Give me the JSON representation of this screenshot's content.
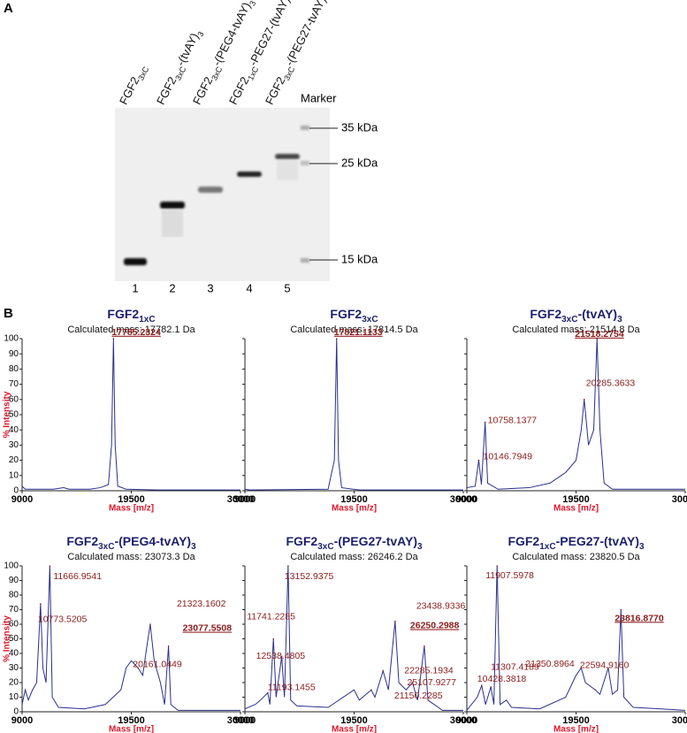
{
  "panel_labels": [
    "A",
    "B"
  ],
  "gel": {
    "lanes": [
      [
        {
          "t": "FGF2"
        },
        {
          "t": "3xC",
          "sub": true
        }
      ],
      [
        {
          "t": "FGF2"
        },
        {
          "t": "3xC",
          "sub": true
        },
        {
          "t": "-(tvAY)"
        },
        {
          "t": "3",
          "sub": true
        }
      ],
      [
        {
          "t": "FGF2"
        },
        {
          "t": "3xC",
          "sub": true
        },
        {
          "t": "-(PEG4-tvAY)"
        },
        {
          "t": "3",
          "sub": true
        }
      ],
      [
        {
          "t": "FGF2"
        },
        {
          "t": "1xC",
          "sub": true
        },
        {
          "t": "-PEG27-(tvAY)"
        },
        {
          "t": "3",
          "sub": true
        }
      ],
      [
        {
          "t": "FGF2"
        },
        {
          "t": "3xC",
          "sub": true
        },
        {
          "t": "-(PEG27-tvAY)"
        },
        {
          "t": "3",
          "sub": true
        }
      ]
    ],
    "lane_numbers": [
      "1",
      "2",
      "3",
      "4",
      "5"
    ],
    "marker_title": "Marker",
    "marker_sizes": [
      "35 kDa",
      "25 kDa",
      "15 kDa"
    ]
  },
  "chart_data": [
    {
      "type": "line",
      "title": [
        {
          "t": "FGF2"
        },
        {
          "t": "1xC",
          "sub": true
        }
      ],
      "subtitle": "Calculated mass: 17782.1 Da",
      "x_label": "Mass [m/z]",
      "y_label": "% Intensity",
      "color": "#2a2f8f",
      "xlim": [
        9000,
        30000
      ],
      "xticks": [
        9000,
        19500,
        30000
      ],
      "ylim": [
        0,
        100
      ],
      "yticks": [
        0,
        10,
        20,
        30,
        40,
        50,
        60,
        70,
        80,
        90,
        100
      ],
      "x": [
        9000,
        9300,
        10000,
        12000,
        13000,
        13500,
        15500,
        16500,
        17300,
        17600,
        17785.2324,
        17950,
        18200,
        19000,
        22000,
        30000
      ],
      "values": [
        3,
        1,
        1,
        1,
        2,
        1,
        1,
        2,
        4,
        30,
        100,
        30,
        3,
        1,
        0.5,
        0.5
      ],
      "peaks": [
        {
          "value": 17785.2324,
          "label": "17785.2324",
          "underline": true
        }
      ]
    },
    {
      "type": "line",
      "title": [
        {
          "t": "FGF2"
        },
        {
          "t": "3xC",
          "sub": true
        }
      ],
      "subtitle": "Calculated mass: 17814.5 Da",
      "x_label": "Mass [m/z]",
      "color": "#2a2f8f",
      "xlim": [
        9000,
        30000
      ],
      "xticks": [
        9000,
        19500,
        30000
      ],
      "ylim": [
        0,
        100
      ],
      "yticks": [
        0,
        10,
        20,
        30,
        40,
        50,
        60,
        70,
        80,
        90,
        100
      ],
      "x": [
        9000,
        9500,
        17000,
        17600,
        17821.1133,
        18000,
        18300,
        20000,
        30000
      ],
      "values": [
        1,
        0.5,
        1,
        20,
        100,
        20,
        2,
        0.5,
        0.5
      ],
      "peaks": [
        {
          "value": 17821.1133,
          "label": "17821.1133",
          "underline": true
        }
      ]
    },
    {
      "type": "line",
      "title": [
        {
          "t": "FGF2"
        },
        {
          "t": "3xC",
          "sub": true
        },
        {
          "t": "-(tvAY)"
        },
        {
          "t": "3",
          "sub": true
        }
      ],
      "subtitle": "Calculated mass: 21514.8 Da",
      "x_label": "Mass [m/z]",
      "color": "#2a2f8f",
      "xlim": [
        9000,
        30000
      ],
      "xticks": [
        9000,
        19500,
        30000
      ],
      "ylim": [
        0,
        100
      ],
      "yticks": [
        0,
        10,
        20,
        30,
        40,
        50,
        60,
        70,
        80,
        90,
        100
      ],
      "x": [
        9000,
        9800,
        10146.7949,
        10400,
        10758.1377,
        11000,
        12000,
        15000,
        17000,
        18500,
        19500,
        20000,
        20285.3633,
        20700,
        21200,
        21518.2754,
        21800,
        22200,
        23000,
        30000
      ],
      "values": [
        2,
        3,
        20,
        4,
        45,
        5,
        1,
        2,
        5,
        12,
        20,
        40,
        60,
        30,
        40,
        100,
        40,
        5,
        1,
        1
      ],
      "peaks": [
        {
          "value": 21518.2754,
          "label": "21518.2754",
          "underline": true
        },
        {
          "value": 20285.3633,
          "label": "20285.3633"
        },
        {
          "value": 10758.1377,
          "label": "10758.1377"
        },
        {
          "value": 10146.7949,
          "label": "10146.7949"
        }
      ]
    },
    {
      "type": "line",
      "title": [
        {
          "t": "FGF2"
        },
        {
          "t": "3xC",
          "sub": true
        },
        {
          "t": "-(PEG4-tvAY)"
        },
        {
          "t": "3",
          "sub": true
        }
      ],
      "subtitle": "Calculated mass: 23073.3 Da",
      "x_label": "Mass [m/z]",
      "y_label": "% Intensity",
      "color": "#2a2f8f",
      "xlim": [
        9000,
        30000
      ],
      "xticks": [
        9000,
        19500,
        30000
      ],
      "ylim": [
        0,
        100
      ],
      "yticks": [
        0,
        10,
        20,
        30,
        40,
        50,
        60,
        70,
        80,
        90,
        100
      ],
      "x": [
        9000,
        9300,
        9600,
        10000,
        10400,
        10773.5205,
        11000,
        11300,
        11666.9541,
        11900,
        12500,
        15000,
        17000,
        18500,
        19000,
        19500,
        20161.0449,
        20600,
        21000,
        21323.1602,
        21700,
        22300,
        22700,
        23077.5508,
        23300,
        24000,
        30000
      ],
      "values": [
        5,
        15,
        8,
        15,
        20,
        74,
        30,
        20,
        100,
        10,
        3,
        2,
        5,
        15,
        30,
        35,
        30,
        25,
        45,
        60,
        35,
        20,
        5,
        45,
        5,
        1,
        1
      ],
      "peaks": [
        {
          "value": 11666.9541,
          "label": "11666.9541"
        },
        {
          "value": 10773.5205,
          "label": "10773.5205"
        },
        {
          "value": 21323.1602,
          "label": "21323.1602"
        },
        {
          "value": 20161.0449,
          "label": "20161.0449"
        },
        {
          "value": 23077.5508,
          "label": "23077.5508",
          "underline": true
        }
      ]
    },
    {
      "type": "line",
      "title": [
        {
          "t": "FGF2"
        },
        {
          "t": "3xC",
          "sub": true
        },
        {
          "t": "-(PEG27-tvAY)"
        },
        {
          "t": "3",
          "sub": true
        }
      ],
      "subtitle": "Calculated mass: 26246.2 Da",
      "x_label": "Mass [m/z]",
      "color": "#2a2f8f",
      "xlim": [
        9000,
        30000
      ],
      "xticks": [
        9000,
        19500,
        30000
      ],
      "ylim": [
        0,
        100
      ],
      "yticks": [
        0,
        10,
        20,
        30,
        40,
        50,
        60,
        70,
        80,
        90,
        100
      ],
      "x": [
        9000,
        10000,
        10500,
        11193.1455,
        11400,
        11741.2285,
        12000,
        12538.4805,
        12800,
        13152.9375,
        13400,
        14000,
        17000,
        19500,
        20000,
        21150.2285,
        21500,
        22285.1934,
        22800,
        23438.9336,
        23800,
        24500,
        25107.9277,
        25600,
        26250.2988,
        26600,
        28000,
        30000
      ],
      "values": [
        2,
        5,
        8,
        13,
        5,
        50,
        10,
        38,
        10,
        100,
        8,
        4,
        3,
        15,
        8,
        15,
        10,
        28,
        15,
        62,
        20,
        15,
        20,
        8,
        45,
        8,
        1,
        1
      ],
      "peaks": [
        {
          "value": 13152.9375,
          "label": "13152.9375"
        },
        {
          "value": 11741.2285,
          "label": "11741.2285"
        },
        {
          "value": 12538.4805,
          "label": "12538.4805"
        },
        {
          "value": 11193.1455,
          "label": "11193.1455"
        },
        {
          "value": 23438.9336,
          "label": "23438.9336"
        },
        {
          "value": 22285.1934,
          "label": "22285.1934"
        },
        {
          "value": 26250.2988,
          "label": "26250.2988",
          "underline": true
        },
        {
          "value": 21150.2285,
          "label": "21150.2285"
        },
        {
          "value": 25107.9277,
          "label": "25107.9277"
        }
      ]
    },
    {
      "type": "line",
      "title": [
        {
          "t": "FGF2"
        },
        {
          "t": "1xC",
          "sub": true
        },
        {
          "t": "-PEG27-(tvAY)"
        },
        {
          "t": "3",
          "sub": true
        }
      ],
      "subtitle": "Calculated mass: 23820.5 Da",
      "x_label": "Mass [m/z]",
      "color": "#2a2f8f",
      "xlim": [
        9000,
        30000
      ],
      "xticks": [
        9000,
        19500,
        30000
      ],
      "ylim": [
        0,
        100
      ],
      "yticks": [
        0,
        10,
        20,
        30,
        40,
        50,
        60,
        70,
        80,
        90,
        100
      ],
      "x": [
        9000,
        10000,
        10428.3818,
        10800,
        11307.4189,
        11600,
        11907.5978,
        12200,
        12800,
        13300,
        16000,
        18500,
        19500,
        20000,
        20400,
        21350.8964,
        21800,
        22594.916,
        23000,
        23500,
        23816.877,
        24100,
        25000,
        30000
      ],
      "values": [
        1,
        10,
        18,
        5,
        17,
        5,
        100,
        5,
        8,
        3,
        2,
        10,
        25,
        30,
        20,
        15,
        12,
        30,
        12,
        15,
        70,
        10,
        3,
        1
      ],
      "peaks": [
        {
          "value": 11907.5978,
          "label": "11907.5978"
        },
        {
          "value": 11307.4189,
          "label": "11307.4189"
        },
        {
          "value": 10428.3818,
          "label": "10428.3818"
        },
        {
          "value": 21350.8964,
          "label": "21350.8964"
        },
        {
          "value": 22594.916,
          "label": "22594.9160"
        },
        {
          "value": 23816.877,
          "label": "23816.8770",
          "underline": true
        }
      ]
    }
  ]
}
